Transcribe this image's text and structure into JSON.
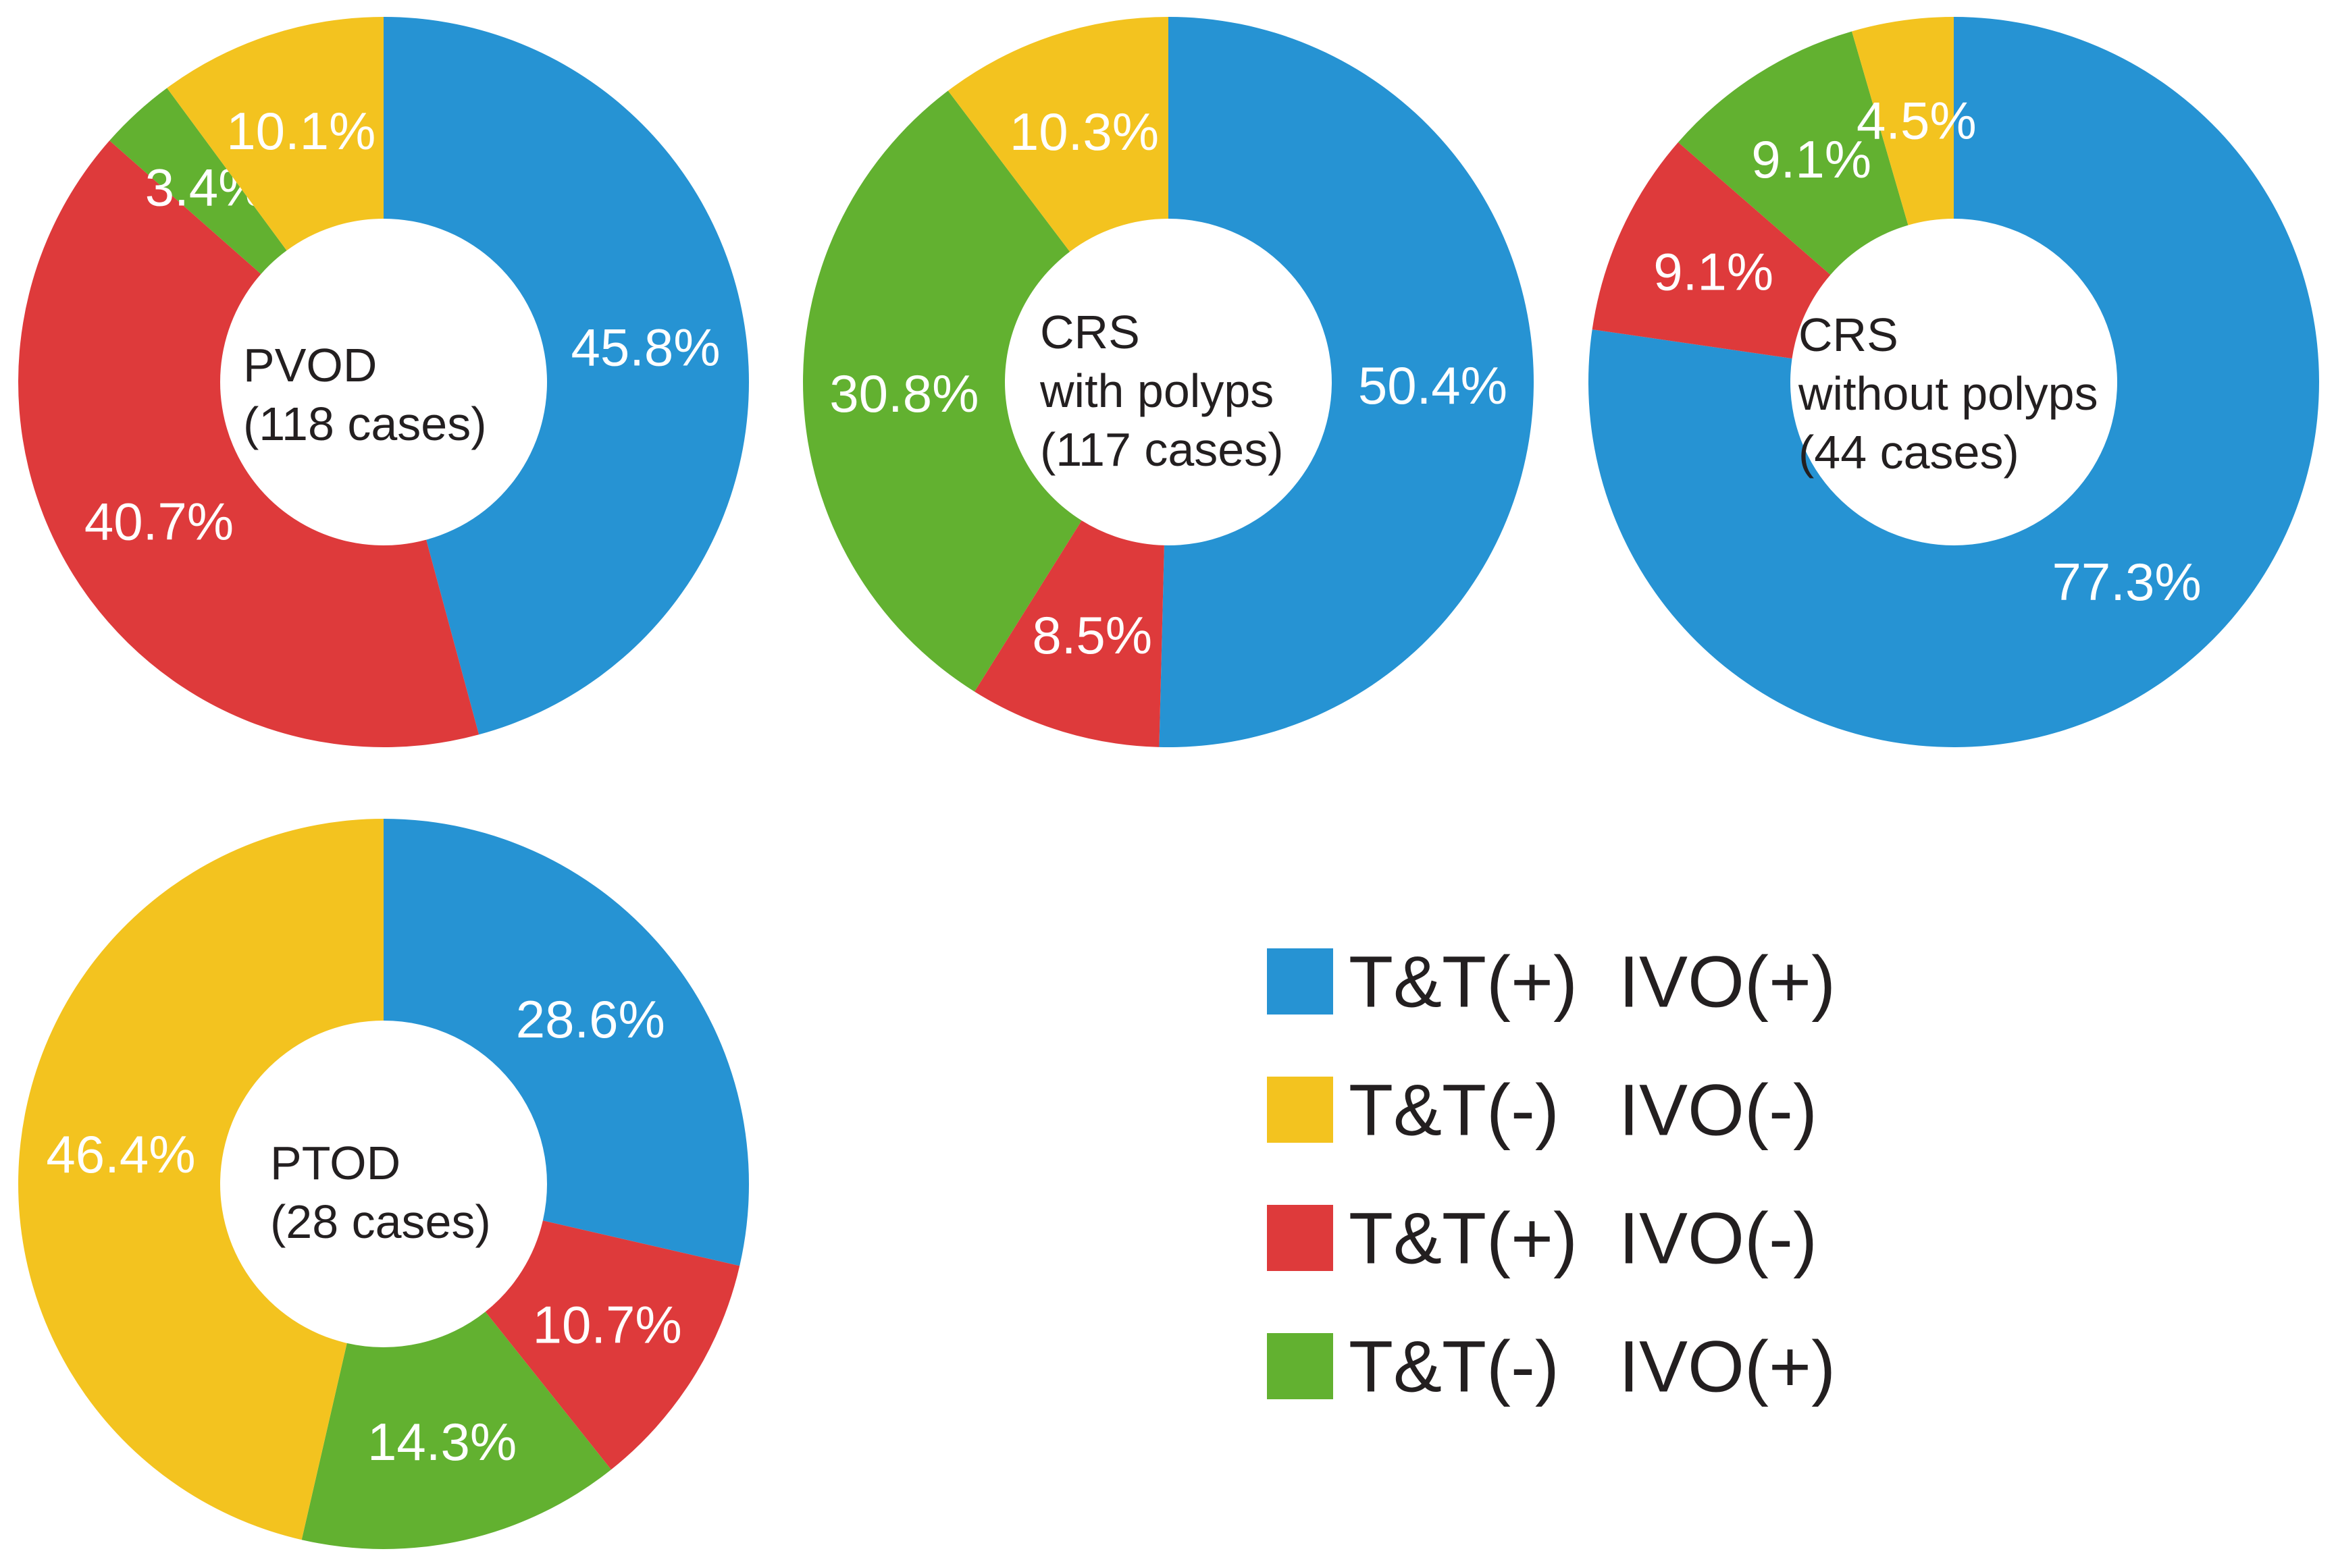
{
  "legend": [
    {
      "key": "tt_pos_ivo_pos",
      "tt": "T&T(+)",
      "ivo": "IVO(+)",
      "color": "#2693d3"
    },
    {
      "key": "tt_neg_ivo_neg",
      "tt": "T&T(-)",
      "ivo": "IVO(-)",
      "color": "#f3c31f"
    },
    {
      "key": "tt_pos_ivo_neg",
      "tt": "T&T(+)",
      "ivo": "IVO(-)",
      "color": "#de3a3b"
    },
    {
      "key": "tt_neg_ivo_pos",
      "tt": "T&T(-)",
      "ivo": "IVO(+)",
      "color": "#62b130"
    }
  ],
  "chart_data": [
    {
      "type": "pie",
      "variant": "donut",
      "name": "pvod",
      "center_label": [
        "PVOD",
        "(118 cases)"
      ],
      "slices": [
        {
          "key": "tt_pos_ivo_pos",
          "value": 45.8,
          "label": "45.8%"
        },
        {
          "key": "tt_pos_ivo_neg",
          "value": 40.7,
          "label": "40.7%"
        },
        {
          "key": "tt_neg_ivo_pos",
          "value": 3.4,
          "label": "3.4%"
        },
        {
          "key": "tt_neg_ivo_neg",
          "value": 10.1,
          "label": "10.1%"
        }
      ]
    },
    {
      "type": "pie",
      "variant": "donut",
      "name": "crs-with-polyps",
      "center_label": [
        "CRS",
        "with polyps",
        "(117 cases)"
      ],
      "slices": [
        {
          "key": "tt_pos_ivo_pos",
          "value": 50.4,
          "label": "50.4%"
        },
        {
          "key": "tt_pos_ivo_neg",
          "value": 8.5,
          "label": "8.5%"
        },
        {
          "key": "tt_neg_ivo_pos",
          "value": 30.8,
          "label": "30.8%"
        },
        {
          "key": "tt_neg_ivo_neg",
          "value": 10.3,
          "label": "10.3%"
        }
      ]
    },
    {
      "type": "pie",
      "variant": "donut",
      "name": "crs-without-polyps",
      "center_label": [
        "CRS",
        "without polyps",
        "(44 cases)"
      ],
      "slices": [
        {
          "key": "tt_pos_ivo_pos",
          "value": 77.3,
          "label": "77.3%"
        },
        {
          "key": "tt_pos_ivo_neg",
          "value": 9.1,
          "label": "9.1%"
        },
        {
          "key": "tt_neg_ivo_pos",
          "value": 9.1,
          "label": "9.1%"
        },
        {
          "key": "tt_neg_ivo_neg",
          "value": 4.5,
          "label": "4.5%"
        }
      ]
    },
    {
      "type": "pie",
      "variant": "donut",
      "name": "ptod",
      "center_label": [
        "PTOD",
        "(28 cases)"
      ],
      "slices": [
        {
          "key": "tt_pos_ivo_pos",
          "value": 28.6,
          "label": "28.6%"
        },
        {
          "key": "tt_pos_ivo_neg",
          "value": 10.7,
          "label": "10.7%"
        },
        {
          "key": "tt_neg_ivo_pos",
          "value": 14.3,
          "label": "14.3%"
        },
        {
          "key": "tt_neg_ivo_neg",
          "value": 46.4,
          "label": "46.4%"
        }
      ]
    }
  ]
}
